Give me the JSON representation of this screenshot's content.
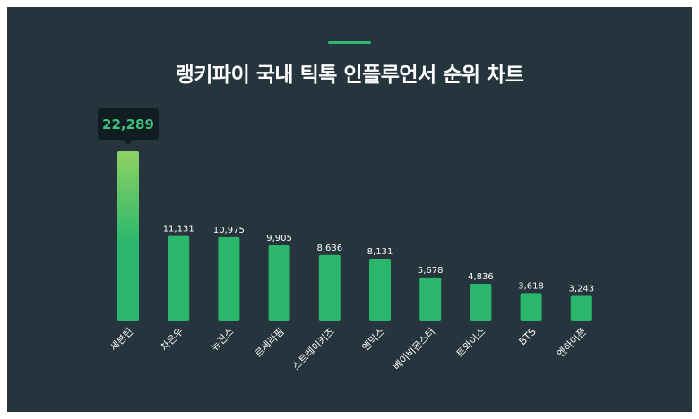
{
  "title": "랭키파이 국내 틱톡 인플루언서 순위 차트",
  "colors": {
    "background": "#26343e",
    "accent": "#2db871",
    "bar": "#2ab76c",
    "bar_highlight_top": "#8fd163",
    "tooltip_bg": "#121c23",
    "tooltip_text": "#3cc27a",
    "label_text": "#ffffff"
  },
  "tooltip": {
    "value": "22,289"
  },
  "chart_data": {
    "type": "bar",
    "title": "랭키파이 국내 틱톡 인플루언서 순위 차트",
    "categories": [
      "세븐틴",
      "차은우",
      "뉴진스",
      "르세라핌",
      "스트레이키즈",
      "엔믹스",
      "베이비몬스터",
      "트와이스",
      "BTS",
      "엔하이픈"
    ],
    "values": [
      22289,
      11131,
      10975,
      9905,
      8636,
      8131,
      5678,
      4836,
      3618,
      3243
    ],
    "value_labels": [
      "",
      "11,131",
      "10,975",
      "9,905",
      "8,636",
      "8,131",
      "5,678",
      "4,836",
      "3,618",
      "3,243"
    ],
    "xlabel": "",
    "ylabel": "",
    "ylim": [
      0,
      22289
    ],
    "grid": false,
    "highlight_index": 0
  }
}
